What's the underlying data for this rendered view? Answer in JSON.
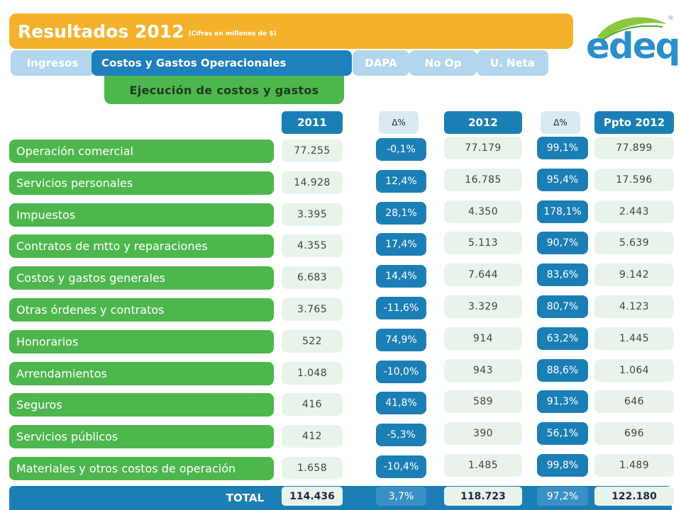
{
  "header": {
    "title": "Resultados 2012",
    "subtitle": "(Cifras en millones de $)"
  },
  "logo": {
    "text": "edeq",
    "mark": "®",
    "icon": "leaf-icon"
  },
  "tabs": [
    {
      "label": "Ingresos"
    },
    {
      "label": "Costos y Gastos Operacionales"
    },
    {
      "label": "DAPA"
    },
    {
      "label": "No Op"
    },
    {
      "label": "U. Neta"
    }
  ],
  "subtab": {
    "label": "Ejecución de costos y gastos"
  },
  "columns": {
    "y2011": "2011",
    "delta1": "Δ%",
    "y2012": "2012",
    "delta2": "Δ%",
    "ppto": "Ppto 2012"
  },
  "rows": [
    {
      "label": "Operación comercial",
      "v2011": "77.255",
      "d1": "-0,1%",
      "v2012": "77.179",
      "d2": "99,1%",
      "ppto": "77.899"
    },
    {
      "label": "Servicios personales",
      "v2011": "14.928",
      "d1": "12,4%",
      "v2012": "16.785",
      "d2": "95,4%",
      "ppto": "17.596"
    },
    {
      "label": "Impuestos",
      "v2011": "3.395",
      "d1": "28,1%",
      "v2012": "4.350",
      "d2": "178,1%",
      "ppto": "2.443"
    },
    {
      "label": "Contratos de mtto y reparaciones",
      "v2011": "4.355",
      "d1": "17,4%",
      "v2012": "5.113",
      "d2": "90,7%",
      "ppto": "5.639"
    },
    {
      "label": "Costos y gastos generales",
      "v2011": "6.683",
      "d1": "14,4%",
      "v2012": "7.644",
      "d2": "83,6%",
      "ppto": "9.142"
    },
    {
      "label": "Otras órdenes y contratos",
      "v2011": "3.765",
      "d1": "-11,6%",
      "v2012": "3.329",
      "d2": "80,7%",
      "ppto": "4.123"
    },
    {
      "label": "Honorarios",
      "v2011": "522",
      "d1": "74,9%",
      "v2012": "914",
      "d2": "63,2%",
      "ppto": "1.445"
    },
    {
      "label": "Arrendamientos",
      "v2011": "1.048",
      "d1": "-10,0%",
      "v2012": "943",
      "d2": "88,6%",
      "ppto": "1.064"
    },
    {
      "label": "Seguros",
      "v2011": "416",
      "d1": "41,8%",
      "v2012": "589",
      "d2": "91,3%",
      "ppto": "646"
    },
    {
      "label": "Servicios públicos",
      "v2011": "412",
      "d1": "-5,3%",
      "v2012": "390",
      "d2": "56,1%",
      "ppto": "696"
    },
    {
      "label": "Materiales y otros costos de operación",
      "v2011": "1.658",
      "d1": "-10,4%",
      "v2012": "1.485",
      "d2": "99,8%",
      "ppto": "1.489"
    }
  ],
  "total": {
    "label": "TOTAL",
    "v2011": "114.436",
    "d1": "3,7%",
    "v2012": "118.723",
    "d2": "97,2%",
    "ppto": "122.180"
  },
  "colors": {
    "accent_orange": "#f4b22c",
    "primary_blue": "#1b7fb6",
    "light_blue": "#b2d6ee",
    "green": "#4db74d",
    "cell_bg": "#e8f4ea"
  }
}
